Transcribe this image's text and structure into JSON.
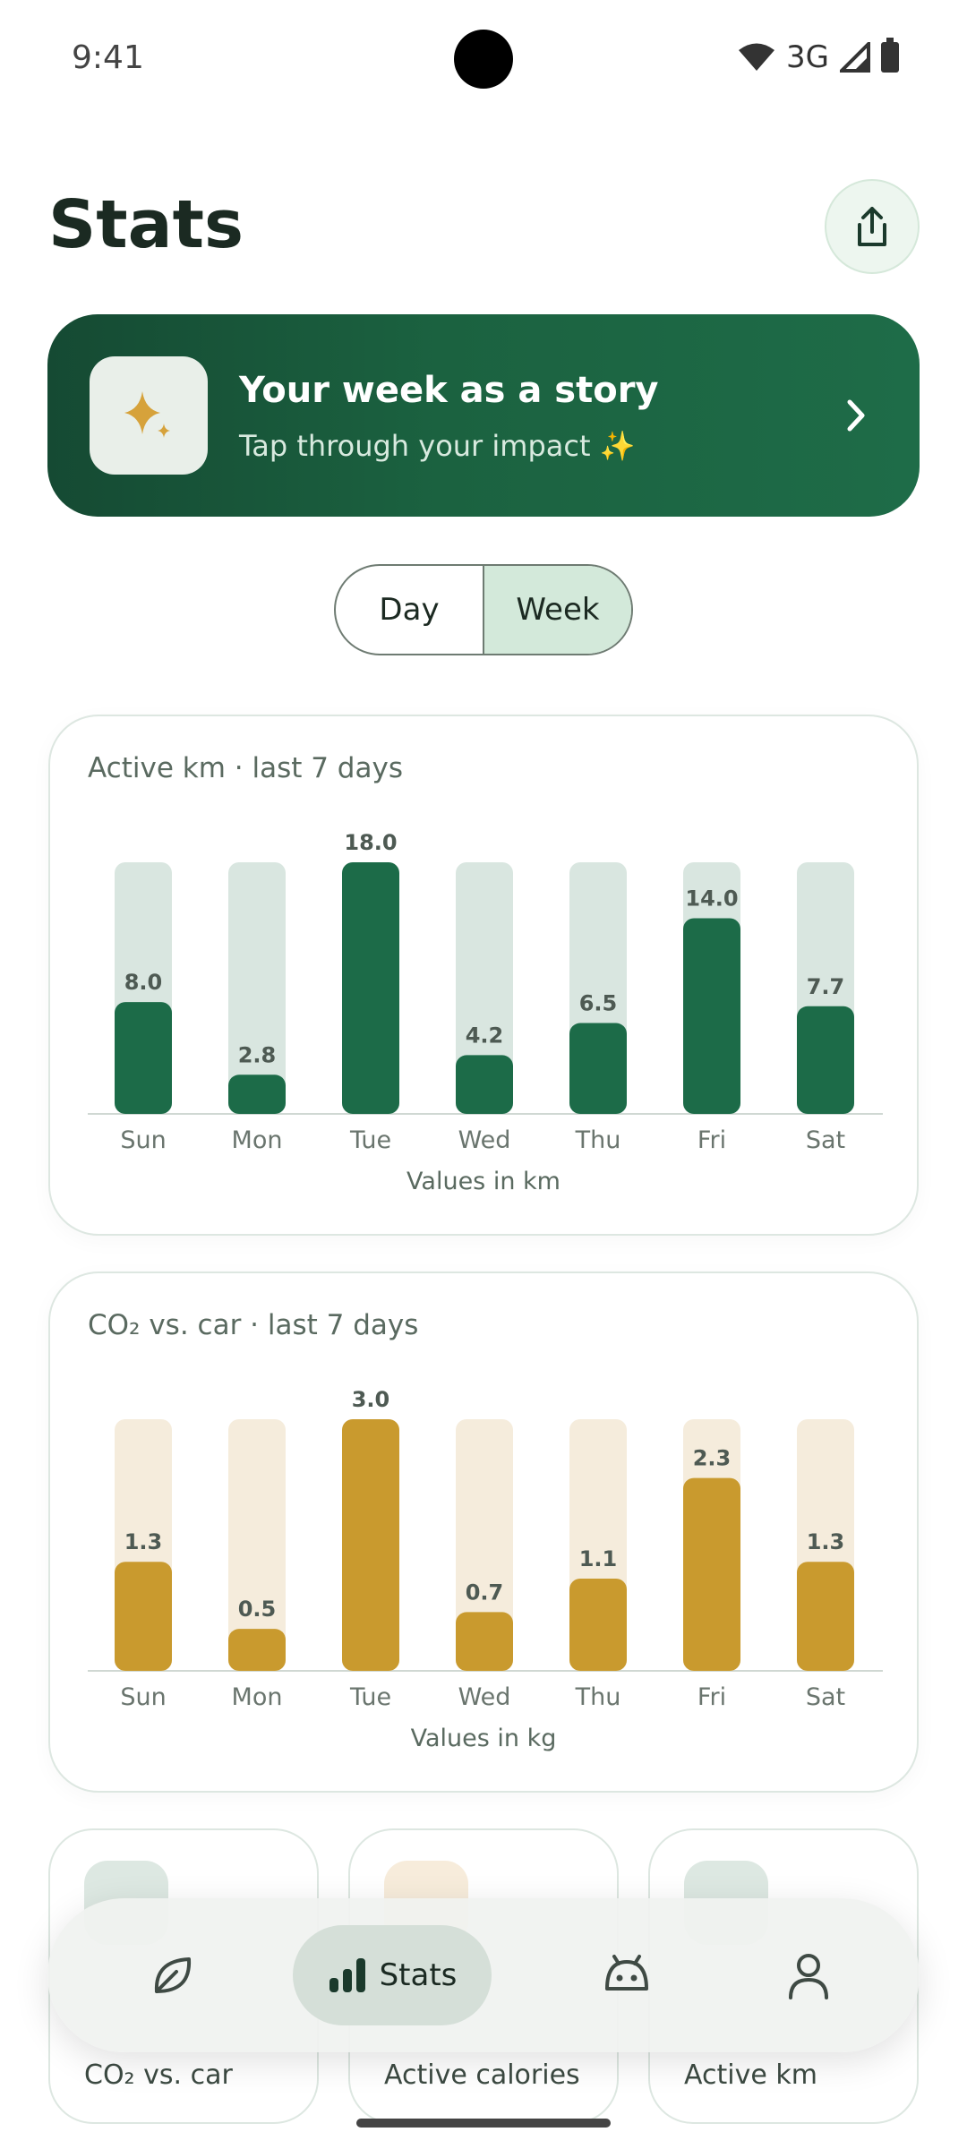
{
  "status": {
    "time": "9:41",
    "network": "3G"
  },
  "page": {
    "title": "Stats",
    "share_icon": "share-icon"
  },
  "story": {
    "title": "Your week as a story",
    "subtitle": "Tap through your impact ✨",
    "icon": "sparkle-icon"
  },
  "range": {
    "options": [
      "Day",
      "Week"
    ],
    "selected": "Week"
  },
  "colors": {
    "km_bar": "#1c6b48",
    "km_track": "#d9e6e0",
    "co2_bar": "#c99a2e",
    "co2_track": "#f5ecdc"
  },
  "chart_data": [
    {
      "type": "bar",
      "title": "Active km · last 7 days",
      "categories": [
        "Sun",
        "Mon",
        "Tue",
        "Wed",
        "Thu",
        "Fri",
        "Sat"
      ],
      "values": [
        8.0,
        2.8,
        18.0,
        4.2,
        6.5,
        14.0,
        7.7
      ],
      "value_labels": [
        "8.0",
        "2.8",
        "18.0",
        "4.2",
        "6.5",
        "14.0",
        "7.7"
      ],
      "ylim": [
        0,
        18
      ],
      "footer": "Values in km"
    },
    {
      "type": "bar",
      "title": "CO₂ vs. car · last 7 days",
      "categories": [
        "Sun",
        "Mon",
        "Tue",
        "Wed",
        "Thu",
        "Fri",
        "Sat"
      ],
      "values": [
        1.3,
        0.5,
        3.0,
        0.7,
        1.1,
        2.3,
        1.3
      ],
      "value_labels": [
        "1.3",
        "0.5",
        "3.0",
        "0.7",
        "1.1",
        "2.3",
        "1.3"
      ],
      "ylim": [
        0,
        3
      ],
      "footer": "Values in kg"
    }
  ],
  "tiles": [
    {
      "label": "CO₂ vs. car",
      "icon": "leaf-icon"
    },
    {
      "label": "Active calories",
      "icon": "flame-icon"
    },
    {
      "label": "Active km",
      "icon": "walk-icon"
    }
  ],
  "nav": {
    "items": [
      {
        "icon": "leaf-icon",
        "label": ""
      },
      {
        "icon": "bar-chart-icon",
        "label": "Stats"
      },
      {
        "icon": "robot-icon",
        "label": ""
      },
      {
        "icon": "person-icon",
        "label": ""
      }
    ]
  }
}
